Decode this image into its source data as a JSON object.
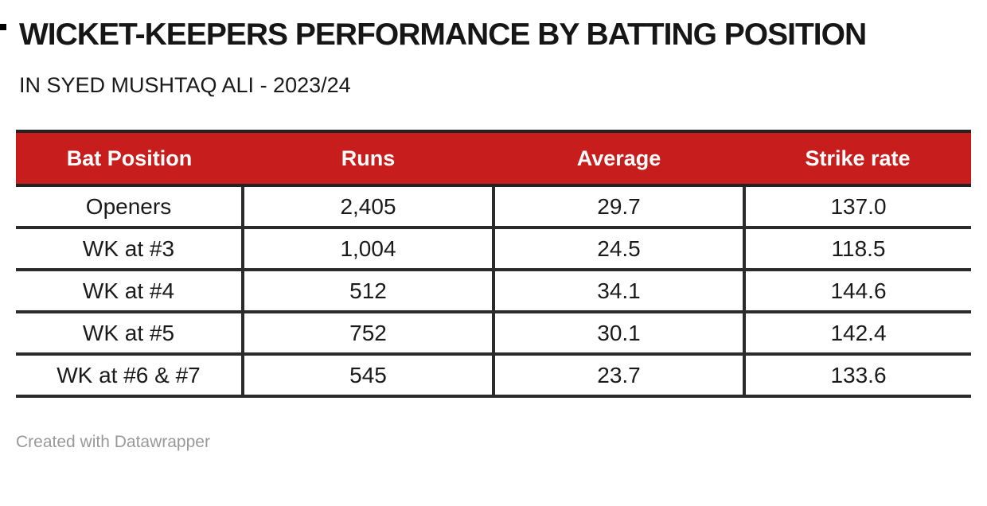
{
  "page": {
    "title": "WICKET-KEEPERS PERFORMANCE BY BATTING POSITION",
    "subtitle": "IN SYED MUSHTAQ ALI - 2023/24",
    "credit": "Created with Datawrapper"
  },
  "table": {
    "headers": [
      "Bat Position",
      "Runs",
      "Average",
      "Strike rate"
    ],
    "rows": [
      [
        "Openers",
        "2,405",
        "29.7",
        "137.0"
      ],
      [
        "WK at #3",
        "1,004",
        "24.5",
        "118.5"
      ],
      [
        "WK at #4",
        "512",
        "34.1",
        "144.6"
      ],
      [
        "WK at #5",
        "752",
        "30.1",
        "142.4"
      ],
      [
        "WK at #6 & #7",
        "545",
        "23.7",
        "133.6"
      ]
    ]
  },
  "colors": {
    "header_bg": "#c71e1d",
    "header_text": "#ffffff",
    "border": "#2b2b2b",
    "body_text": "#1a1a1a",
    "credit_text": "#999999"
  },
  "chart_data": {
    "type": "table",
    "title": "WICKET-KEEPERS PERFORMANCE BY BATTING POSITION",
    "subtitle": "IN SYED MUSHTAQ ALI - 2023/24",
    "columns": [
      "Bat Position",
      "Runs",
      "Average",
      "Strike rate"
    ],
    "rows": [
      {
        "bat_position": "Openers",
        "runs": 2405,
        "average": 29.7,
        "strike_rate": 137.0
      },
      {
        "bat_position": "WK at #3",
        "runs": 1004,
        "average": 24.5,
        "strike_rate": 118.5
      },
      {
        "bat_position": "WK at #4",
        "runs": 512,
        "average": 34.1,
        "strike_rate": 144.6
      },
      {
        "bat_position": "WK at #5",
        "runs": 752,
        "average": 30.1,
        "strike_rate": 142.4
      },
      {
        "bat_position": "WK at #6 & #7",
        "runs": 545,
        "average": 23.7,
        "strike_rate": 133.6
      }
    ],
    "header_bg_color": "#c71e1d",
    "legend_position": "none",
    "grid": "row-and-column-borders"
  }
}
